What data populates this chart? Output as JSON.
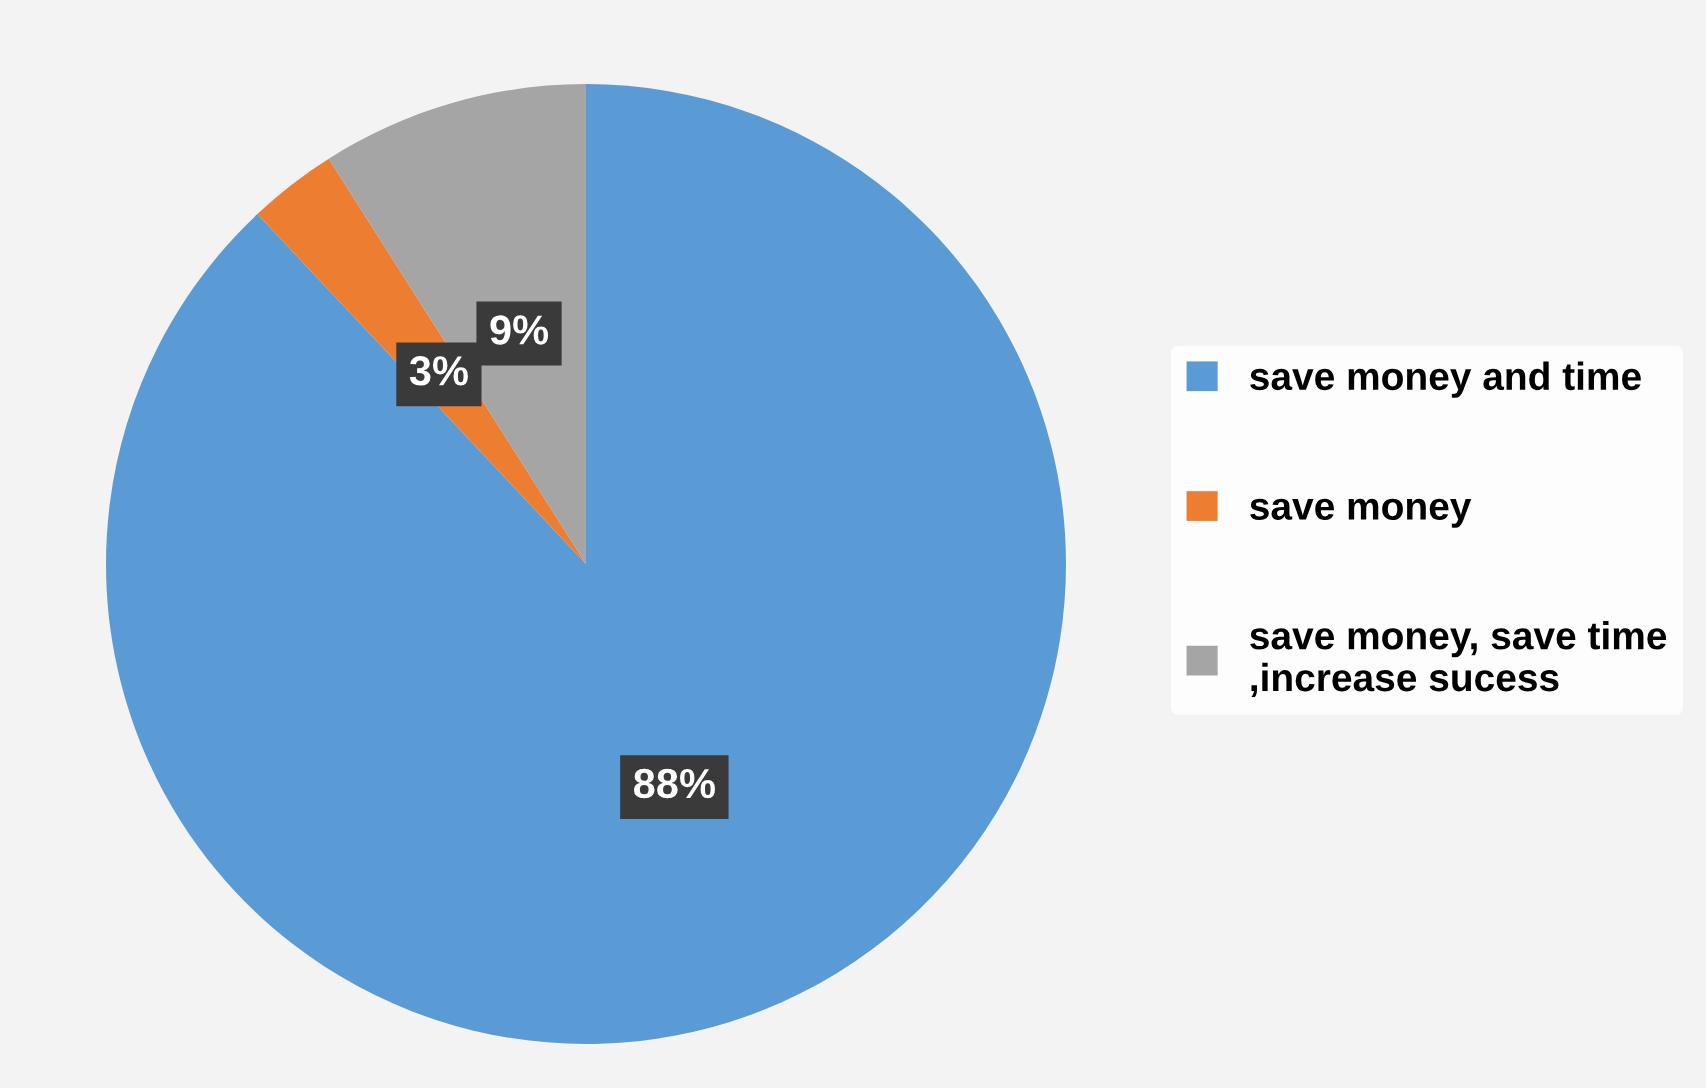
{
  "chart_data": {
    "type": "pie",
    "categories": [
      "save money and time",
      "save money",
      "save money, save time\n,increase sucess"
    ],
    "values": [
      88,
      3,
      9
    ],
    "colors": [
      "#5b9bd5",
      "#ed7d31",
      "#a5a5a5"
    ],
    "value_labels": [
      "88%",
      "3%",
      "9%"
    ],
    "legend": "right"
  }
}
